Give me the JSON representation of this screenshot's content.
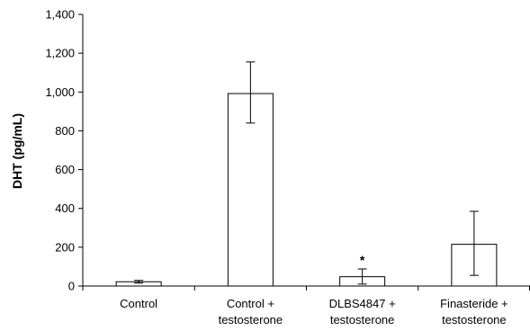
{
  "chart_data": {
    "type": "bar",
    "title": "",
    "xlabel": "",
    "ylabel": "DHT (pg/mL)",
    "ylim": [
      0,
      1400
    ],
    "yticks": [
      0,
      200,
      400,
      600,
      800,
      1000,
      1200,
      1400
    ],
    "ytick_labels": [
      "0",
      "200",
      "400",
      "600",
      "800",
      "1,000",
      "1,200",
      "1,400"
    ],
    "categories": [
      [
        "Control"
      ],
      [
        "Control +",
        "testosterone"
      ],
      [
        "DLBS4847 +",
        "testosterone"
      ],
      [
        "Finasteride +",
        "testosterone"
      ]
    ],
    "values": [
      22,
      992,
      48,
      215
    ],
    "error_low": [
      15,
      840,
      10,
      55
    ],
    "error_high": [
      29,
      1155,
      88,
      385
    ],
    "annotations": [
      {
        "category_index": 2,
        "text": "*"
      }
    ],
    "bar_fill": "#ffffff",
    "bar_stroke": "#000000",
    "grid": false,
    "legend": "none"
  }
}
